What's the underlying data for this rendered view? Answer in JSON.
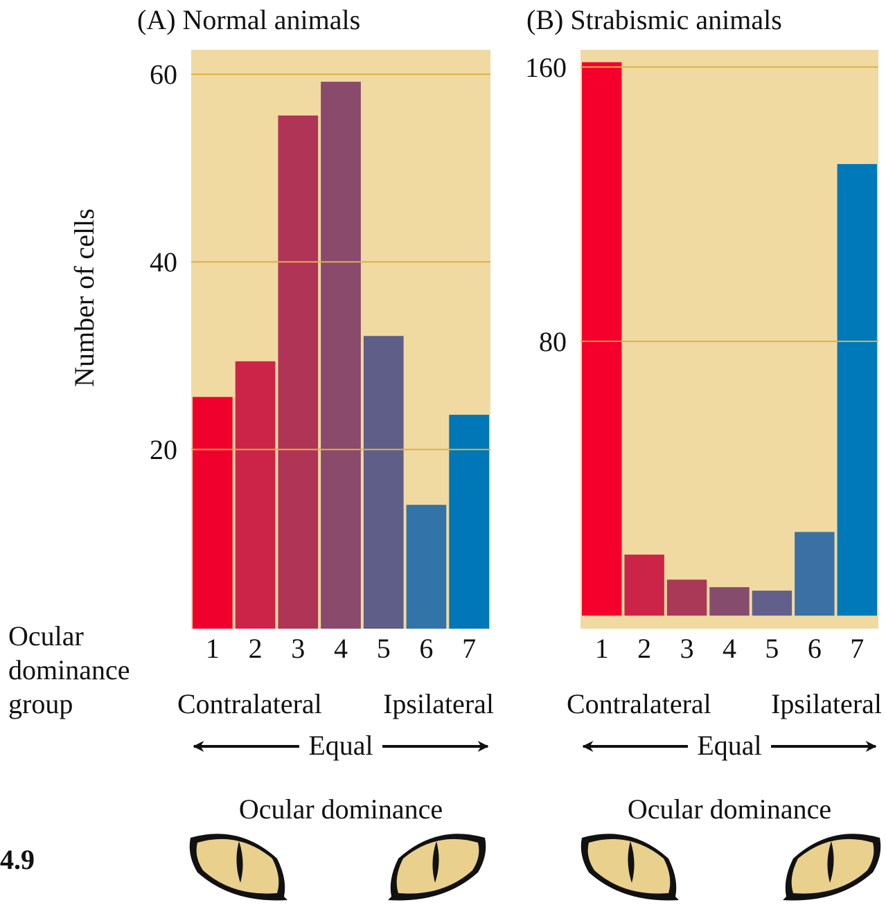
{
  "figure_label": "4.9",
  "group_label": [
    "Ocular",
    "dominance",
    "group"
  ],
  "chart_data": [
    {
      "type": "bar",
      "title": "(A) Normal animals",
      "ylabel": "Number of cells",
      "categories": [
        "1",
        "2",
        "3",
        "4",
        "5",
        "6",
        "7"
      ],
      "values": [
        25.6,
        29.4,
        55.6,
        59.2,
        32.1,
        14.1,
        23.7
      ],
      "colors": [
        "#f0002d",
        "#cc2448",
        "#b03455",
        "#8a4a6c",
        "#5e5e88",
        "#3274a8",
        "#0077b6"
      ],
      "ylim": [
        0.9,
        62.6
      ],
      "yticks": [
        20,
        40,
        60
      ],
      "grid": true,
      "annotations": {
        "left": "Contralateral",
        "right": "Ipsilateral",
        "middle": "Equal",
        "footer": "Ocular dominance"
      }
    },
    {
      "type": "bar",
      "title": "(B) Strabismic animals",
      "categories": [
        "1",
        "2",
        "3",
        "4",
        "5",
        "6",
        "7"
      ],
      "values": [
        161.4,
        17.8,
        10.5,
        8.3,
        7.3,
        24.4,
        131.7
      ],
      "colors": [
        "#f5002c",
        "#cc2448",
        "#aa3857",
        "#854c6e",
        "#62608a",
        "#3a70a4",
        "#0079b8"
      ],
      "ylim": [
        -3.8,
        165
      ],
      "yticks": [
        80,
        160
      ],
      "grid": true,
      "annotations": {
        "left": "Contralateral",
        "right": "Ipsilateral",
        "middle": "Equal",
        "footer": "Ocular dominance"
      }
    }
  ]
}
